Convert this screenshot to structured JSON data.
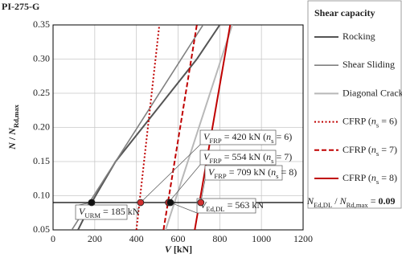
{
  "chart_data": {
    "type": "line",
    "title": "PI-275-G",
    "xlabel": [
      {
        "t": "V",
        "i": true
      },
      {
        "t": " [kN]"
      }
    ],
    "ylabel": [
      {
        "t": "N",
        "i": true
      },
      {
        "t": " / "
      },
      {
        "t": "N",
        "i": true
      },
      {
        "t": "Rd,max",
        "sub": true
      }
    ],
    "xlim": [
      0,
      1200
    ],
    "xticks": [
      0,
      200,
      400,
      600,
      800,
      1000,
      1200
    ],
    "ylim": [
      0.05,
      0.35
    ],
    "yticks": [
      0.05,
      {
        "value": 0.1,
        "label": "0.10"
      },
      0.15,
      {
        "value": 0.2,
        "label": "0.20"
      },
      0.25,
      {
        "value": 0.3,
        "label": "0.30"
      },
      0.35
    ],
    "grid": true,
    "legend_title": "Shear capacity",
    "series": [
      {
        "name": [
          {
            "t": "Rocking"
          }
        ],
        "color": "#555555",
        "width": 2,
        "dash": "solid",
        "x": [
          120,
          185,
          300,
          430,
          560,
          690,
          800
        ],
        "values": [
          0.05,
          0.09,
          0.15,
          0.2,
          0.25,
          0.3,
          0.35
        ]
      },
      {
        "name": [
          {
            "t": "Shear Sliding"
          }
        ],
        "color": "#808080",
        "width": 1.6,
        "dash": "solid",
        "x": [
          90,
          720
        ],
        "values": [
          0.05,
          0.35
        ]
      },
      {
        "name": [
          {
            "t": "Diagonal Cracking"
          }
        ],
        "color": "#b8b8b8",
        "width": 2,
        "dash": "solid",
        "x": [
          540,
          860
        ],
        "values": [
          0.05,
          0.35
        ]
      },
      {
        "name": [
          {
            "t": "CFRP ("
          },
          {
            "t": "n",
            "i": true
          },
          {
            "t": "s",
            "sub": true
          },
          {
            "t": " = 6)"
          }
        ],
        "color": "#c00000",
        "width": 2,
        "dash": "dotted",
        "x": [
          400,
          510
        ],
        "values": [
          0.05,
          0.35
        ]
      },
      {
        "name": [
          {
            "t": "CFRP ("
          },
          {
            "t": "n",
            "i": true
          },
          {
            "t": "s",
            "sub": true
          },
          {
            "t": " = 7)"
          }
        ],
        "color": "#c00000",
        "width": 2,
        "dash": "dashed",
        "x": [
          530,
          690
        ],
        "values": [
          0.05,
          0.35
        ]
      },
      {
        "name": [
          {
            "t": "CFRP ("
          },
          {
            "t": "n",
            "i": true
          },
          {
            "t": "s",
            "sub": true
          },
          {
            "t": " = 8)"
          }
        ],
        "color": "#c00000",
        "width": 2,
        "dash": "solid",
        "x": [
          680,
          850
        ],
        "values": [
          0.05,
          0.35
        ]
      }
    ],
    "hline": {
      "value": 0.09,
      "color": "#000000",
      "label": [
        {
          "t": "N",
          "i": true
        },
        {
          "t": "Ed,DL",
          "sub": true
        },
        {
          "t": " / "
        },
        {
          "t": "N",
          "i": true
        },
        {
          "t": "Rd,max",
          "sub": true
        },
        {
          "t": " = "
        },
        {
          "t": "0.09",
          "b": true
        }
      ]
    },
    "points": {
      "x": [
        185,
        420,
        554,
        563,
        709
      ],
      "values": [
        0.09,
        0.09,
        0.09,
        0.09,
        0.09
      ],
      "colors": [
        "#111111",
        "#d03030",
        "#d03030",
        "#111111",
        "#d03030"
      ]
    },
    "annotations": [
      [
        {
          "t": "V",
          "i": true
        },
        {
          "t": "URM",
          "sub": true
        },
        {
          "t": " = 185 kN"
        }
      ],
      [
        {
          "t": "V",
          "i": true
        },
        {
          "t": "FRP",
          "sub": true
        },
        {
          "t": " = 420 kN ("
        },
        {
          "t": "n",
          "i": true
        },
        {
          "t": "s",
          "sub": true
        },
        {
          "t": " = 6)"
        }
      ],
      [
        {
          "t": "V",
          "i": true
        },
        {
          "t": "FRP",
          "sub": true
        },
        {
          "t": " = 554 kN ("
        },
        {
          "t": "n",
          "i": true
        },
        {
          "t": "s",
          "sub": true
        },
        {
          "t": " = 7)"
        }
      ],
      [
        {
          "t": "V",
          "i": true
        },
        {
          "t": "Ed,DL",
          "sub": true
        },
        {
          "t": " = 563 kN"
        }
      ],
      [
        {
          "t": "V",
          "i": true
        },
        {
          "t": "FRP",
          "sub": true
        },
        {
          "t": " = 709 kN ("
        },
        {
          "t": "n",
          "i": true
        },
        {
          "t": "s",
          "sub": true
        },
        {
          "t": " = 8)"
        }
      ]
    ]
  }
}
